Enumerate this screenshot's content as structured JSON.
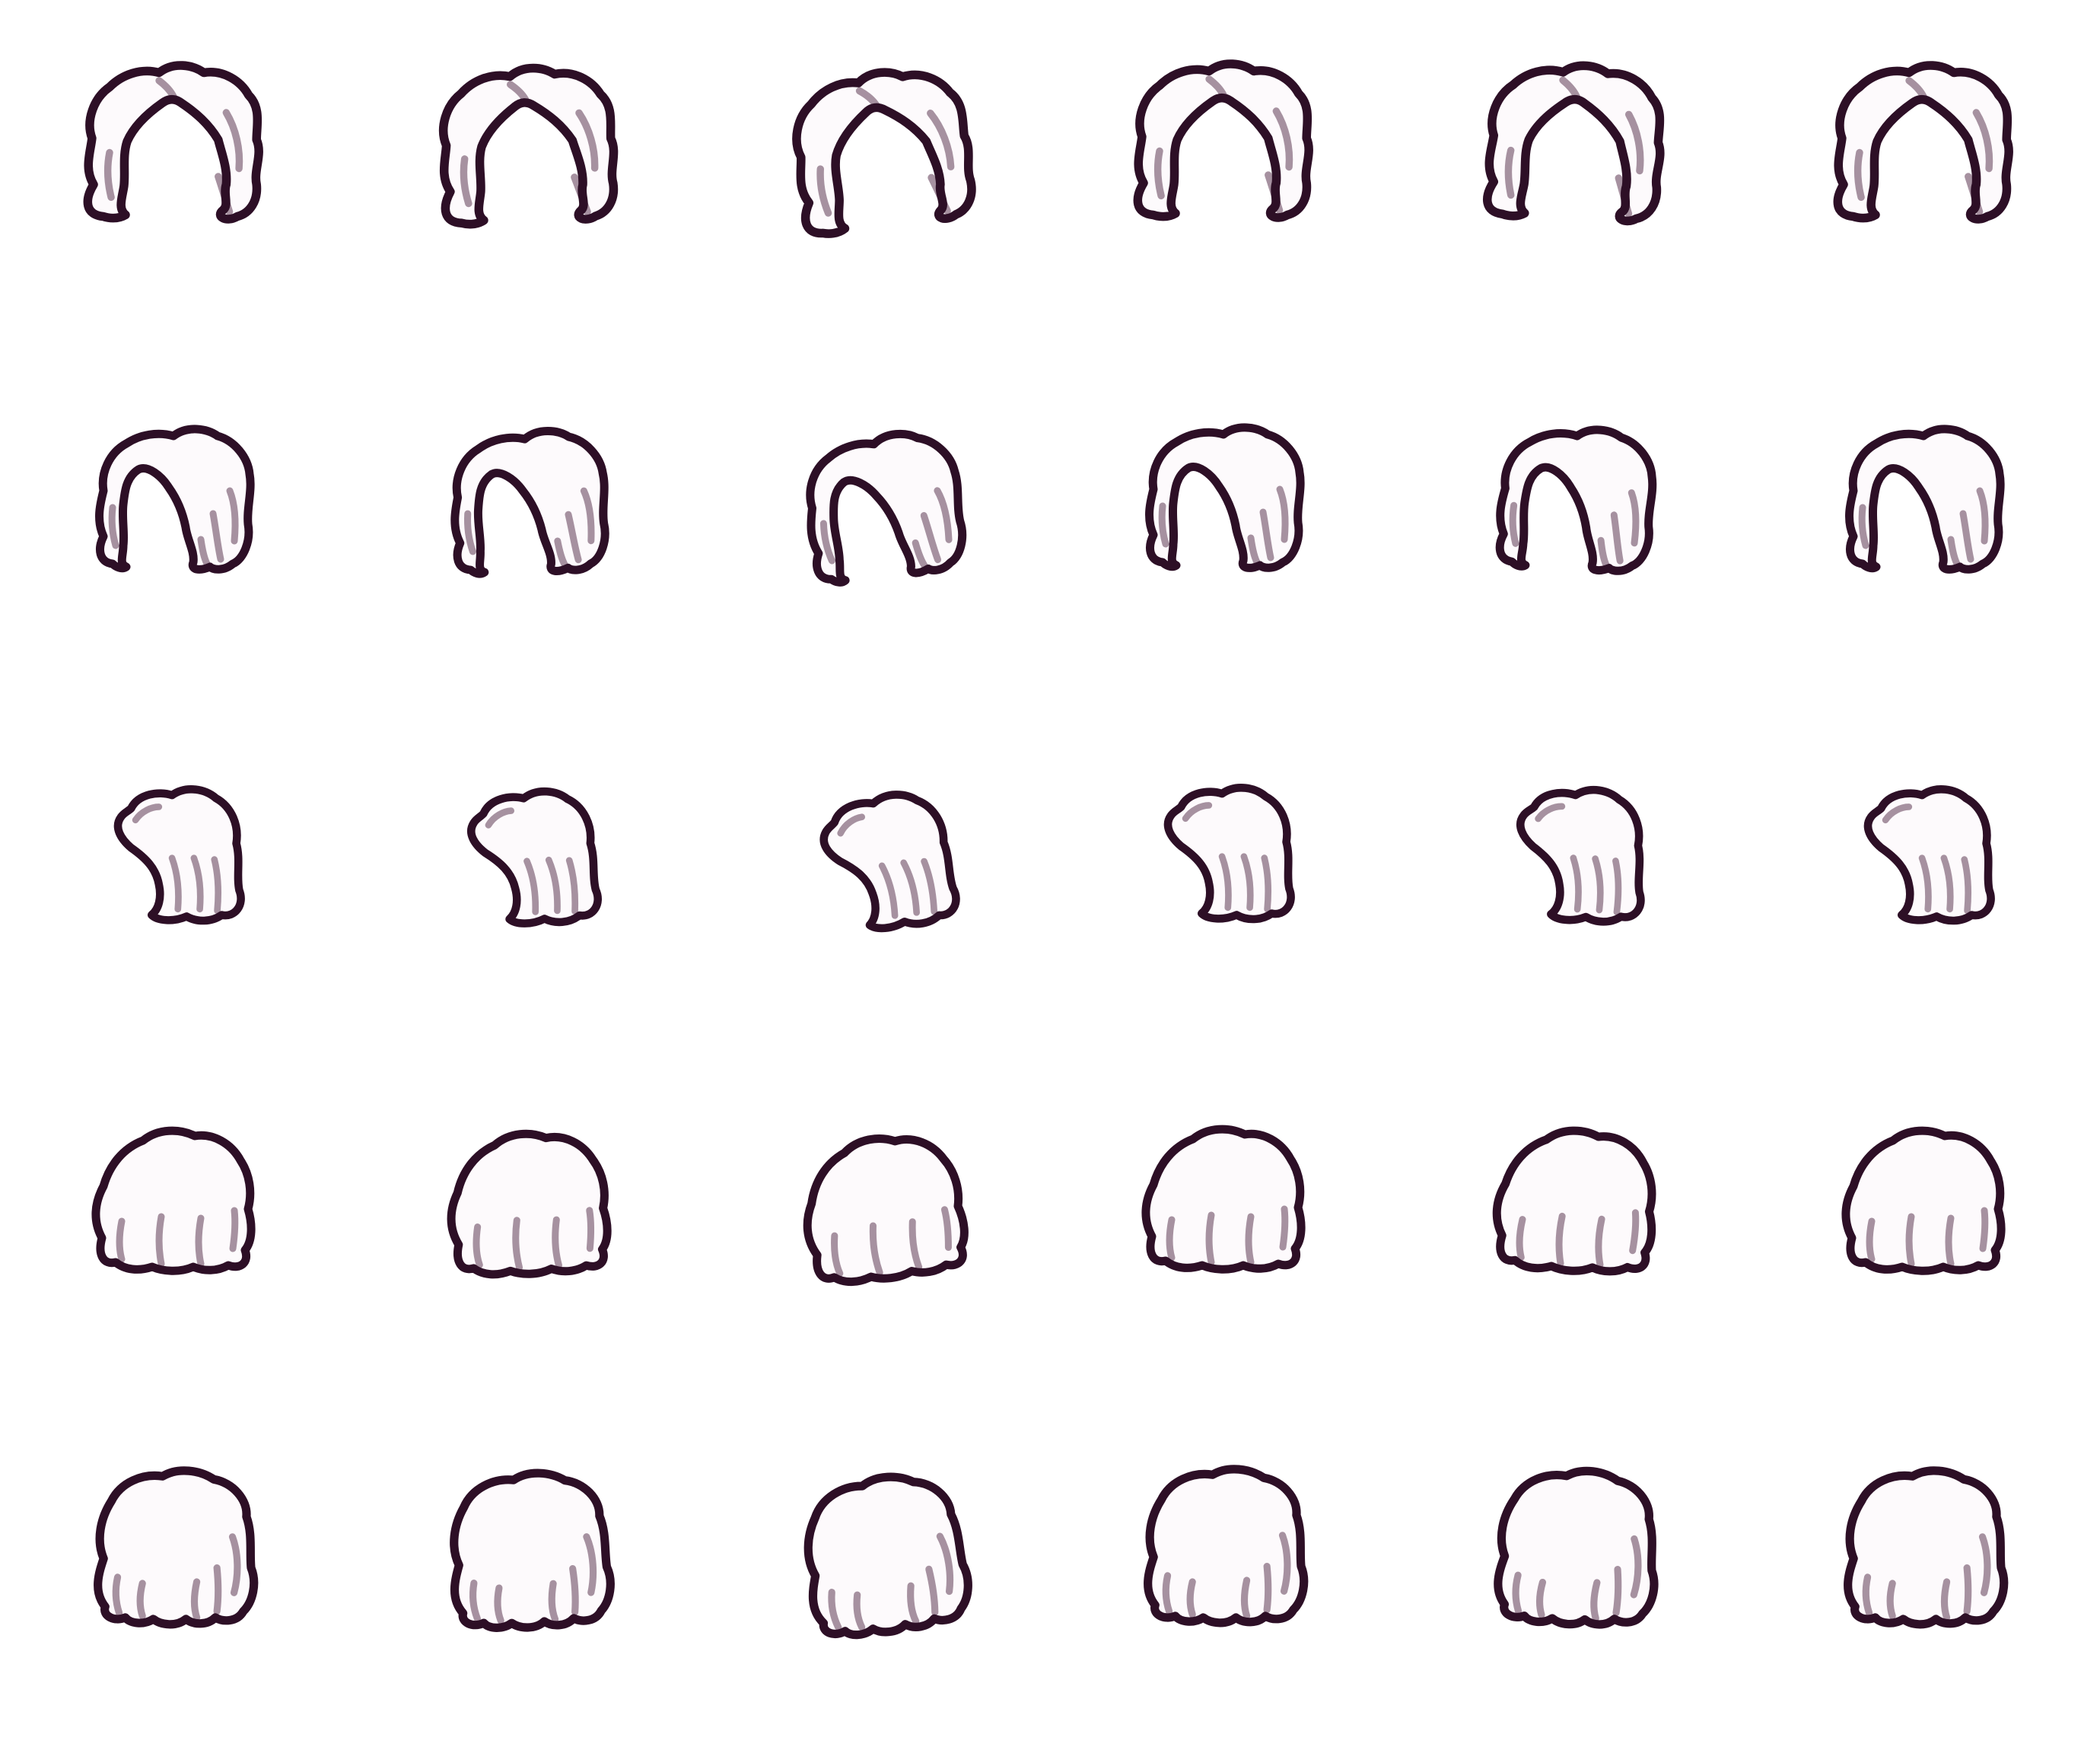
{
  "sheet": {
    "background_color": "#ffffff",
    "outline_color": "#2d0f26",
    "fill_color": "#fdfafc",
    "shade_color": "#9c8596",
    "rows": [
      {
        "style": "parted-hair-front",
        "frames": [
          {
            "icon": "parted-hair-front-icon"
          },
          {
            "icon": "parted-hair-front-icon"
          },
          {
            "icon": "parted-hair-front-icon"
          },
          {
            "icon": "parted-hair-front-icon"
          },
          {
            "icon": "parted-hair-front-icon"
          },
          {
            "icon": "parted-hair-front-icon"
          }
        ]
      },
      {
        "style": "parted-hair-three-quarter",
        "frames": [
          {
            "icon": "parted-hair-three-quarter-icon"
          },
          {
            "icon": "parted-hair-three-quarter-icon"
          },
          {
            "icon": "parted-hair-three-quarter-icon"
          },
          {
            "icon": "parted-hair-three-quarter-icon"
          },
          {
            "icon": "parted-hair-three-quarter-icon"
          },
          {
            "icon": "parted-hair-three-quarter-icon"
          }
        ]
      },
      {
        "style": "hair-side-profile",
        "frames": [
          {
            "icon": "hair-side-profile-icon"
          },
          {
            "icon": "hair-side-profile-icon"
          },
          {
            "icon": "hair-side-profile-icon"
          },
          {
            "icon": "hair-side-profile-icon"
          },
          {
            "icon": "hair-side-profile-icon"
          },
          {
            "icon": "hair-side-profile-icon"
          }
        ]
      },
      {
        "style": "hair-back-rounded",
        "frames": [
          {
            "icon": "hair-back-rounded-icon"
          },
          {
            "icon": "hair-back-rounded-icon"
          },
          {
            "icon": "hair-back-rounded-icon"
          },
          {
            "icon": "hair-back-rounded-icon"
          },
          {
            "icon": "hair-back-rounded-icon"
          },
          {
            "icon": "hair-back-rounded-icon"
          }
        ]
      },
      {
        "style": "hair-back-long",
        "frames": [
          {
            "icon": "hair-back-long-icon"
          },
          {
            "icon": "hair-back-long-icon"
          },
          {
            "icon": "hair-back-long-icon"
          },
          {
            "icon": "hair-back-long-icon"
          },
          {
            "icon": "hair-back-long-icon"
          },
          {
            "icon": "hair-back-long-icon"
          }
        ]
      }
    ]
  }
}
